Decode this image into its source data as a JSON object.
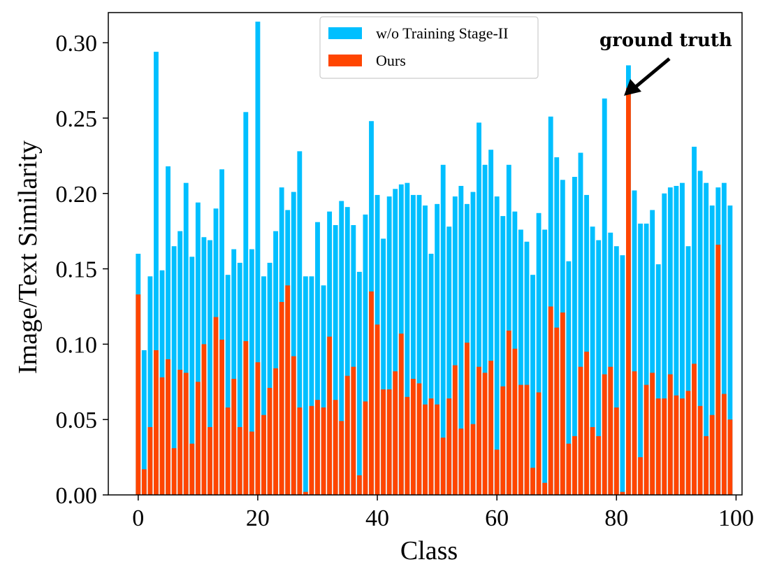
{
  "chart_data": {
    "type": "bar",
    "title": "",
    "xlabel": "Class",
    "ylabel": "Image/Text Similarity",
    "xlim": [
      -5,
      101
    ],
    "ylim": [
      0,
      0.32
    ],
    "xticks": [
      0,
      20,
      40,
      60,
      80,
      100
    ],
    "xtick_labels": [
      "0",
      "20",
      "40",
      "60",
      "80",
      "100"
    ],
    "yticks": [
      0,
      0.05,
      0.1,
      0.15,
      0.2,
      0.25,
      0.3
    ],
    "ytick_labels": [
      "0.00",
      "0.05",
      "0.10",
      "0.15",
      "0.20",
      "0.25",
      "0.30"
    ],
    "legend_position": "top-center",
    "series": [
      {
        "name": "w/o Training Stage-II",
        "color": "#00BFFF",
        "values": [
          0.16,
          0.096,
          0.145,
          0.294,
          0.149,
          0.218,
          0.165,
          0.175,
          0.207,
          0.158,
          0.194,
          0.171,
          0.169,
          0.19,
          0.216,
          0.146,
          0.163,
          0.154,
          0.254,
          0.163,
          0.314,
          0.145,
          0.154,
          0.175,
          0.204,
          0.189,
          0.201,
          0.228,
          0.145,
          0.145,
          0.181,
          0.139,
          0.188,
          0.179,
          0.195,
          0.191,
          0.179,
          0.148,
          0.186,
          0.248,
          0.199,
          0.17,
          0.198,
          0.203,
          0.206,
          0.207,
          0.199,
          0.199,
          0.192,
          0.16,
          0.193,
          0.219,
          0.178,
          0.198,
          0.205,
          0.193,
          0.201,
          0.247,
          0.219,
          0.229,
          0.198,
          0.185,
          0.219,
          0.188,
          0.176,
          0.168,
          0.146,
          0.187,
          0.176,
          0.251,
          0.224,
          0.209,
          0.155,
          0.211,
          0.227,
          0.199,
          0.178,
          0.169,
          0.263,
          0.174,
          0.165,
          0.159,
          0.285,
          0.202,
          0.18,
          0.18,
          0.189,
          0.153,
          0.2,
          0.204,
          0.205,
          0.207,
          0.165,
          0.231,
          0.215,
          0.207,
          0.192,
          0.204,
          0.207,
          0.192
        ]
      },
      {
        "name": "Ours",
        "color": "#FF4500",
        "values": [
          0.133,
          0.017,
          0.045,
          0.096,
          0.078,
          0.09,
          0.031,
          0.083,
          0.081,
          0.034,
          0.075,
          0.1,
          0.045,
          0.118,
          0.103,
          0.058,
          0.077,
          0.045,
          0.102,
          0.042,
          0.088,
          0.053,
          0.071,
          0.084,
          0.128,
          0.139,
          0.092,
          0.058,
          0.002,
          0.059,
          0.063,
          0.058,
          0.105,
          0.063,
          0.049,
          0.079,
          0.085,
          0.013,
          0.062,
          0.135,
          0.113,
          0.07,
          0.07,
          0.082,
          0.107,
          0.065,
          0.077,
          0.074,
          0.06,
          0.064,
          0.06,
          0.038,
          0.064,
          0.086,
          0.044,
          0.101,
          0.047,
          0.085,
          0.081,
          0.089,
          0.03,
          0.072,
          0.109,
          0.097,
          0.073,
          0.073,
          0.018,
          0.068,
          0.008,
          0.125,
          0.111,
          0.121,
          0.034,
          0.039,
          0.085,
          0.095,
          0.045,
          0.039,
          0.08,
          0.085,
          0.058,
          0.002,
          0.27,
          0.082,
          0.025,
          0.073,
          0.081,
          0.064,
          0.064,
          0.08,
          0.066,
          0.064,
          0.069,
          0.087,
          0.059,
          0.039,
          0.053,
          0.166,
          0.067,
          0.05
        ]
      }
    ],
    "annotations": [
      {
        "text": "ground truth",
        "x": 82,
        "y": 0.27,
        "arrow": true
      }
    ]
  }
}
